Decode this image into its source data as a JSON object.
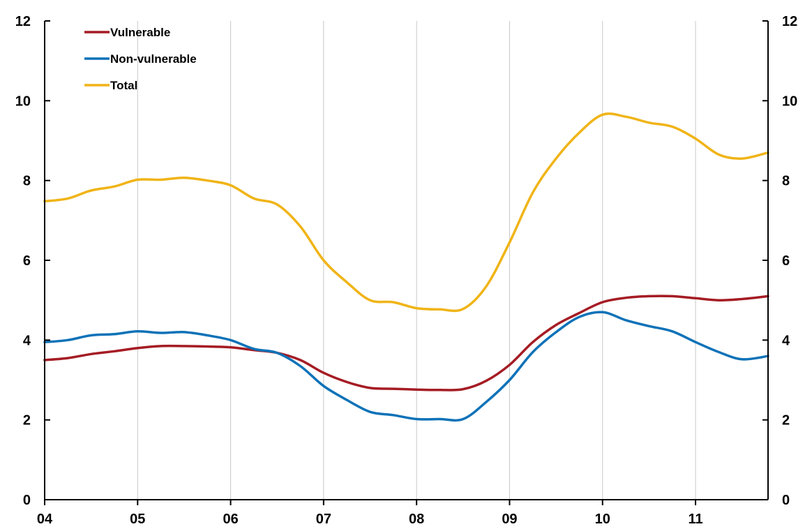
{
  "chart_data": {
    "type": "line",
    "xlabel": "",
    "ylabel": "",
    "x_tick_labels": [
      "04",
      "05",
      "06",
      "07",
      "08",
      "09",
      "10",
      "11"
    ],
    "xlim": [
      2004.0,
      2011.78
    ],
    "ylim": [
      0,
      12
    ],
    "y_ticks": [
      0,
      2,
      4,
      6,
      8,
      10,
      12
    ],
    "y_tick_labels": [
      "0",
      "2",
      "4",
      "6",
      "8",
      "10",
      "12"
    ],
    "right_axis_mirrors_left": true,
    "grid": "vertical",
    "legend_position": "top-left",
    "series": [
      {
        "name": "Vulnerable",
        "color": "#a51c24",
        "x": [
          2004.0,
          2004.25,
          2004.5,
          2004.75,
          2005.0,
          2005.25,
          2005.5,
          2005.75,
          2006.0,
          2006.25,
          2006.5,
          2006.75,
          2007.0,
          2007.25,
          2007.5,
          2007.75,
          2008.0,
          2008.25,
          2008.5,
          2008.75,
          2009.0,
          2009.25,
          2009.5,
          2009.75,
          2010.0,
          2010.25,
          2010.5,
          2010.75,
          2011.0,
          2011.25,
          2011.5,
          2011.78
        ],
        "values": [
          3.5,
          3.55,
          3.65,
          3.72,
          3.8,
          3.85,
          3.85,
          3.84,
          3.82,
          3.75,
          3.68,
          3.5,
          3.18,
          2.95,
          2.8,
          2.78,
          2.76,
          2.75,
          2.77,
          2.98,
          3.38,
          3.95,
          4.38,
          4.68,
          4.95,
          5.06,
          5.1,
          5.1,
          5.05,
          5.0,
          5.03,
          5.1
        ]
      },
      {
        "name": "Non-vulnerable",
        "color": "#0e72b8",
        "x": [
          2004.0,
          2004.25,
          2004.5,
          2004.75,
          2005.0,
          2005.25,
          2005.5,
          2005.75,
          2006.0,
          2006.25,
          2006.5,
          2006.75,
          2007.0,
          2007.25,
          2007.5,
          2007.75,
          2008.0,
          2008.25,
          2008.5,
          2008.75,
          2009.0,
          2009.25,
          2009.5,
          2009.75,
          2010.0,
          2010.25,
          2010.5,
          2010.75,
          2011.0,
          2011.25,
          2011.5,
          2011.78
        ],
        "values": [
          3.95,
          4.0,
          4.12,
          4.15,
          4.22,
          4.18,
          4.2,
          4.12,
          4.0,
          3.78,
          3.68,
          3.35,
          2.85,
          2.5,
          2.2,
          2.12,
          2.02,
          2.02,
          2.02,
          2.45,
          3.0,
          3.7,
          4.2,
          4.58,
          4.7,
          4.5,
          4.35,
          4.22,
          3.95,
          3.7,
          3.52,
          3.6
        ]
      },
      {
        "name": "Total",
        "color": "#f0b417",
        "x": [
          2004.0,
          2004.25,
          2004.5,
          2004.75,
          2005.0,
          2005.25,
          2005.5,
          2005.75,
          2006.0,
          2006.25,
          2006.5,
          2006.75,
          2007.0,
          2007.25,
          2007.5,
          2007.75,
          2008.0,
          2008.25,
          2008.5,
          2008.75,
          2009.0,
          2009.25,
          2009.5,
          2009.75,
          2010.0,
          2010.25,
          2010.5,
          2010.75,
          2011.0,
          2011.25,
          2011.5,
          2011.78
        ],
        "values": [
          7.48,
          7.55,
          7.75,
          7.85,
          8.02,
          8.02,
          8.07,
          8.0,
          7.88,
          7.55,
          7.4,
          6.85,
          6.0,
          5.45,
          5.0,
          4.95,
          4.8,
          4.77,
          4.78,
          5.35,
          6.45,
          7.7,
          8.55,
          9.2,
          9.65,
          9.6,
          9.45,
          9.35,
          9.05,
          8.65,
          8.55,
          8.7
        ]
      }
    ]
  }
}
